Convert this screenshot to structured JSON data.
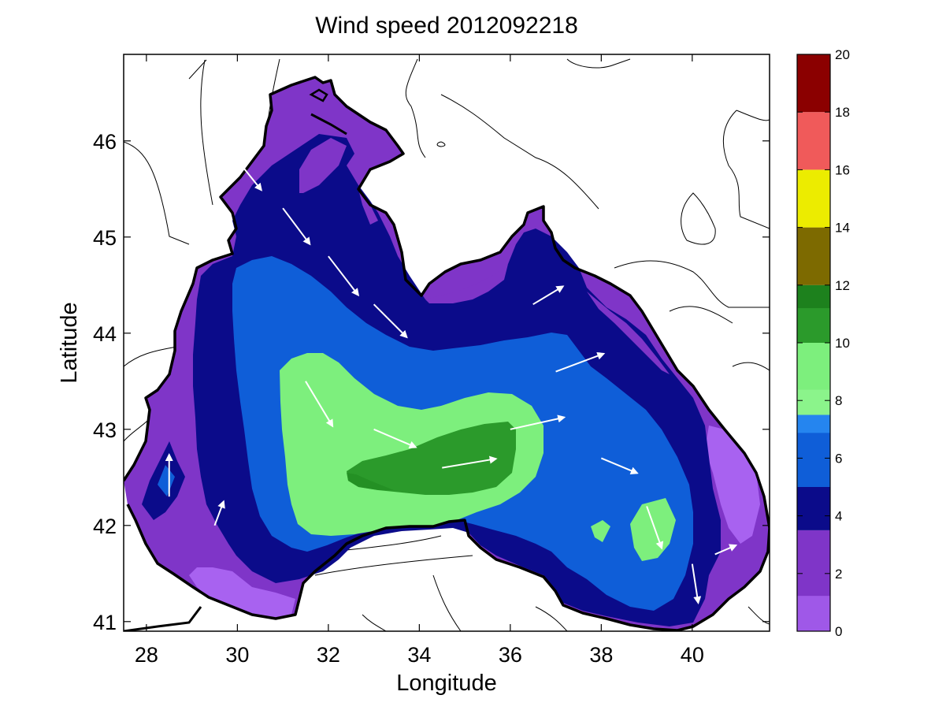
{
  "chart_data": {
    "type": "filled-contour-map",
    "title": "Wind speed 2012092218",
    "xlabel": "Longitude",
    "ylabel": "Latitude",
    "xlim": [
      27.5,
      41.7
    ],
    "ylim": [
      40.9,
      46.9
    ],
    "xticks": [
      28,
      30,
      32,
      34,
      36,
      38,
      40
    ],
    "yticks": [
      41,
      42,
      43,
      44,
      45,
      46
    ],
    "colorbar": {
      "range": [
        0,
        20
      ],
      "ticks": [
        0,
        2,
        4,
        6,
        8,
        10,
        12,
        14,
        16,
        18,
        20
      ],
      "bands": [
        {
          "from": 0,
          "to": 3.5,
          "color": "#7f35c8",
          "light": "#a862f0"
        },
        {
          "from": 3.5,
          "to": 5,
          "color": "#0b0b8a"
        },
        {
          "from": 5,
          "to": 7.5,
          "color": "#0f5ed8",
          "light": "#2a8ef5"
        },
        {
          "from": 7.5,
          "to": 10,
          "color": "#7def7d",
          "light": "#8ef58e"
        },
        {
          "from": 10,
          "to": 12,
          "color": "#2b9a2b",
          "light": "#1a7a1a"
        },
        {
          "from": 12,
          "to": 14,
          "color": "#7d6a00"
        },
        {
          "from": 14,
          "to": 16,
          "color": "#ecec00"
        },
        {
          "from": 16,
          "to": 18,
          "color": "#f05a5a"
        },
        {
          "from": 18,
          "to": 20,
          "color": "#8b0000"
        }
      ]
    },
    "contour_regions": [
      {
        "level": "0-3.5",
        "color": "#7f35c8",
        "description": "sea area outer band"
      },
      {
        "level": "3.5-5",
        "color": "#0b0b8a"
      },
      {
        "level": "5-7.5",
        "color": "#0f5ed8"
      },
      {
        "level": "7.5-10",
        "color": "#7def7d"
      },
      {
        "level": "10-12",
        "color": "#2b9a2b"
      }
    ],
    "wind_vectors": [
      {
        "lon": 30.0,
        "lat": 45.8,
        "u": 0.8,
        "v": -1.0
      },
      {
        "lon": 31.0,
        "lat": 45.3,
        "u": 0.9,
        "v": -1.2
      },
      {
        "lon": 32.0,
        "lat": 44.8,
        "u": 1.0,
        "v": -1.3
      },
      {
        "lon": 33.0,
        "lat": 44.3,
        "u": 1.1,
        "v": -1.1
      },
      {
        "lon": 31.5,
        "lat": 43.5,
        "u": 0.9,
        "v": -1.5
      },
      {
        "lon": 33.0,
        "lat": 43.0,
        "u": 1.4,
        "v": -0.6
      },
      {
        "lon": 34.5,
        "lat": 42.6,
        "u": 1.8,
        "v": 0.3
      },
      {
        "lon": 36.0,
        "lat": 43.0,
        "u": 1.8,
        "v": 0.4
      },
      {
        "lon": 37.0,
        "lat": 43.6,
        "u": 1.6,
        "v": 0.6
      },
      {
        "lon": 38.0,
        "lat": 42.7,
        "u": 1.2,
        "v": -0.5
      },
      {
        "lon": 39.0,
        "lat": 42.2,
        "u": 0.5,
        "v": -1.4
      },
      {
        "lon": 40.0,
        "lat": 41.6,
        "u": 0.2,
        "v": -1.3
      },
      {
        "lon": 28.5,
        "lat": 42.3,
        "u": 0.0,
        "v": 1.4
      },
      {
        "lon": 29.5,
        "lat": 42.0,
        "u": 0.3,
        "v": 0.8
      },
      {
        "lon": 36.5,
        "lat": 44.3,
        "u": 1.0,
        "v": 0.6
      },
      {
        "lon": 40.5,
        "lat": 41.7,
        "u": 0.7,
        "v": 0.3
      }
    ]
  }
}
